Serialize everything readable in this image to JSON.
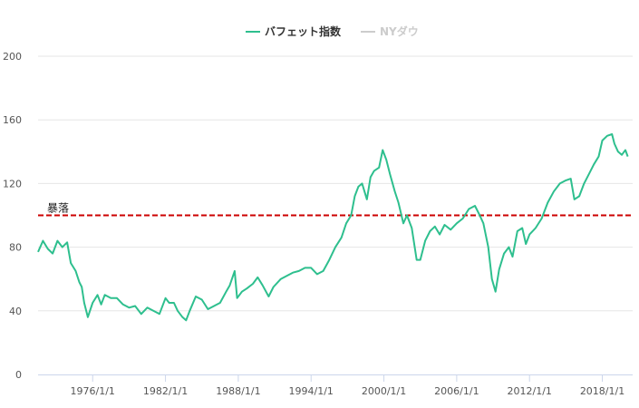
{
  "chart_data": {
    "type": "line",
    "title": "",
    "xlabel": "",
    "ylabel": "",
    "ylim": [
      0,
      200
    ],
    "y_ticks": [
      0,
      40,
      80,
      120,
      160,
      200
    ],
    "x_tick_labels": [
      "1976/1/1",
      "1982/1/1",
      "1988/1/1",
      "1994/1/1",
      "2000/1/1",
      "2006/1/1",
      "2012/1/1",
      "2018/1/1"
    ],
    "x_tick_years": [
      1976,
      1982,
      1988,
      1994,
      2000,
      2006,
      2012,
      2018
    ],
    "xlim_years": [
      1971.5,
      2020.5
    ],
    "grid": "horizontal",
    "legend_position": "top-center",
    "series": [
      {
        "name": "バフェット指数",
        "color": "#2ebf8e",
        "visible": true,
        "points": [
          [
            1971.5,
            77
          ],
          [
            1971.9,
            84
          ],
          [
            1972.3,
            79
          ],
          [
            1972.7,
            76
          ],
          [
            1973.1,
            84
          ],
          [
            1973.5,
            80
          ],
          [
            1973.9,
            83
          ],
          [
            1974.2,
            70
          ],
          [
            1974.6,
            65
          ],
          [
            1974.9,
            58
          ],
          [
            1975.1,
            55
          ],
          [
            1975.3,
            45
          ],
          [
            1975.6,
            36
          ],
          [
            1976.0,
            45
          ],
          [
            1976.4,
            50
          ],
          [
            1976.7,
            44
          ],
          [
            1977.0,
            50
          ],
          [
            1977.5,
            48
          ],
          [
            1978.0,
            48
          ],
          [
            1978.5,
            44
          ],
          [
            1979.0,
            42
          ],
          [
            1979.5,
            43
          ],
          [
            1980.0,
            38
          ],
          [
            1980.5,
            42
          ],
          [
            1981.0,
            40
          ],
          [
            1981.5,
            38
          ],
          [
            1982.0,
            48
          ],
          [
            1982.3,
            45
          ],
          [
            1982.7,
            45
          ],
          [
            1983.0,
            40
          ],
          [
            1983.4,
            36
          ],
          [
            1983.7,
            34
          ],
          [
            1984.0,
            40
          ],
          [
            1984.5,
            49
          ],
          [
            1985.0,
            47
          ],
          [
            1985.5,
            41
          ],
          [
            1986.0,
            43
          ],
          [
            1986.5,
            45
          ],
          [
            1987.0,
            52
          ],
          [
            1987.3,
            56
          ],
          [
            1987.7,
            65
          ],
          [
            1987.9,
            48
          ],
          [
            1988.3,
            52
          ],
          [
            1988.7,
            54
          ],
          [
            1989.2,
            57
          ],
          [
            1989.6,
            61
          ],
          [
            1990.0,
            56
          ],
          [
            1990.5,
            49
          ],
          [
            1990.9,
            55
          ],
          [
            1991.5,
            60
          ],
          [
            1992.0,
            62
          ],
          [
            1992.5,
            64
          ],
          [
            1993.0,
            65
          ],
          [
            1993.5,
            67
          ],
          [
            1994.0,
            67
          ],
          [
            1994.5,
            63
          ],
          [
            1995.0,
            65
          ],
          [
            1995.5,
            72
          ],
          [
            1996.0,
            80
          ],
          [
            1996.5,
            86
          ],
          [
            1996.9,
            95
          ],
          [
            1997.3,
            100
          ],
          [
            1997.6,
            112
          ],
          [
            1997.9,
            118
          ],
          [
            1998.2,
            120
          ],
          [
            1998.6,
            110
          ],
          [
            1998.9,
            124
          ],
          [
            1999.2,
            128
          ],
          [
            1999.6,
            130
          ],
          [
            1999.9,
            141
          ],
          [
            2000.2,
            135
          ],
          [
            2000.5,
            126
          ],
          [
            2000.9,
            115
          ],
          [
            2001.2,
            108
          ],
          [
            2001.6,
            95
          ],
          [
            2001.9,
            100
          ],
          [
            2002.3,
            92
          ],
          [
            2002.7,
            72
          ],
          [
            2003.0,
            72
          ],
          [
            2003.4,
            84
          ],
          [
            2003.8,
            90
          ],
          [
            2004.2,
            93
          ],
          [
            2004.6,
            88
          ],
          [
            2005.0,
            94
          ],
          [
            2005.5,
            91
          ],
          [
            2006.0,
            95
          ],
          [
            2006.5,
            98
          ],
          [
            2007.0,
            104
          ],
          [
            2007.5,
            106
          ],
          [
            2007.9,
            100
          ],
          [
            2008.2,
            95
          ],
          [
            2008.6,
            80
          ],
          [
            2008.9,
            60
          ],
          [
            2009.2,
            52
          ],
          [
            2009.5,
            66
          ],
          [
            2009.9,
            76
          ],
          [
            2010.3,
            80
          ],
          [
            2010.6,
            74
          ],
          [
            2011.0,
            90
          ],
          [
            2011.4,
            92
          ],
          [
            2011.7,
            82
          ],
          [
            2012.0,
            88
          ],
          [
            2012.5,
            92
          ],
          [
            2013.0,
            98
          ],
          [
            2013.5,
            108
          ],
          [
            2014.0,
            115
          ],
          [
            2014.5,
            120
          ],
          [
            2015.0,
            122
          ],
          [
            2015.4,
            123
          ],
          [
            2015.7,
            110
          ],
          [
            2016.1,
            112
          ],
          [
            2016.5,
            120
          ],
          [
            2016.9,
            126
          ],
          [
            2017.3,
            132
          ],
          [
            2017.7,
            137
          ],
          [
            2018.0,
            147
          ],
          [
            2018.4,
            150
          ],
          [
            2018.8,
            151
          ],
          [
            2019.0,
            145
          ],
          [
            2019.3,
            140
          ],
          [
            2019.6,
            138
          ],
          [
            2019.9,
            141
          ],
          [
            2020.1,
            137
          ]
        ]
      },
      {
        "name": "NYダウ",
        "color": "#cccccc",
        "visible": false,
        "points": []
      }
    ],
    "reference_lines": [
      {
        "value": 100,
        "label": "暴落",
        "color": "#cc0000"
      }
    ]
  }
}
